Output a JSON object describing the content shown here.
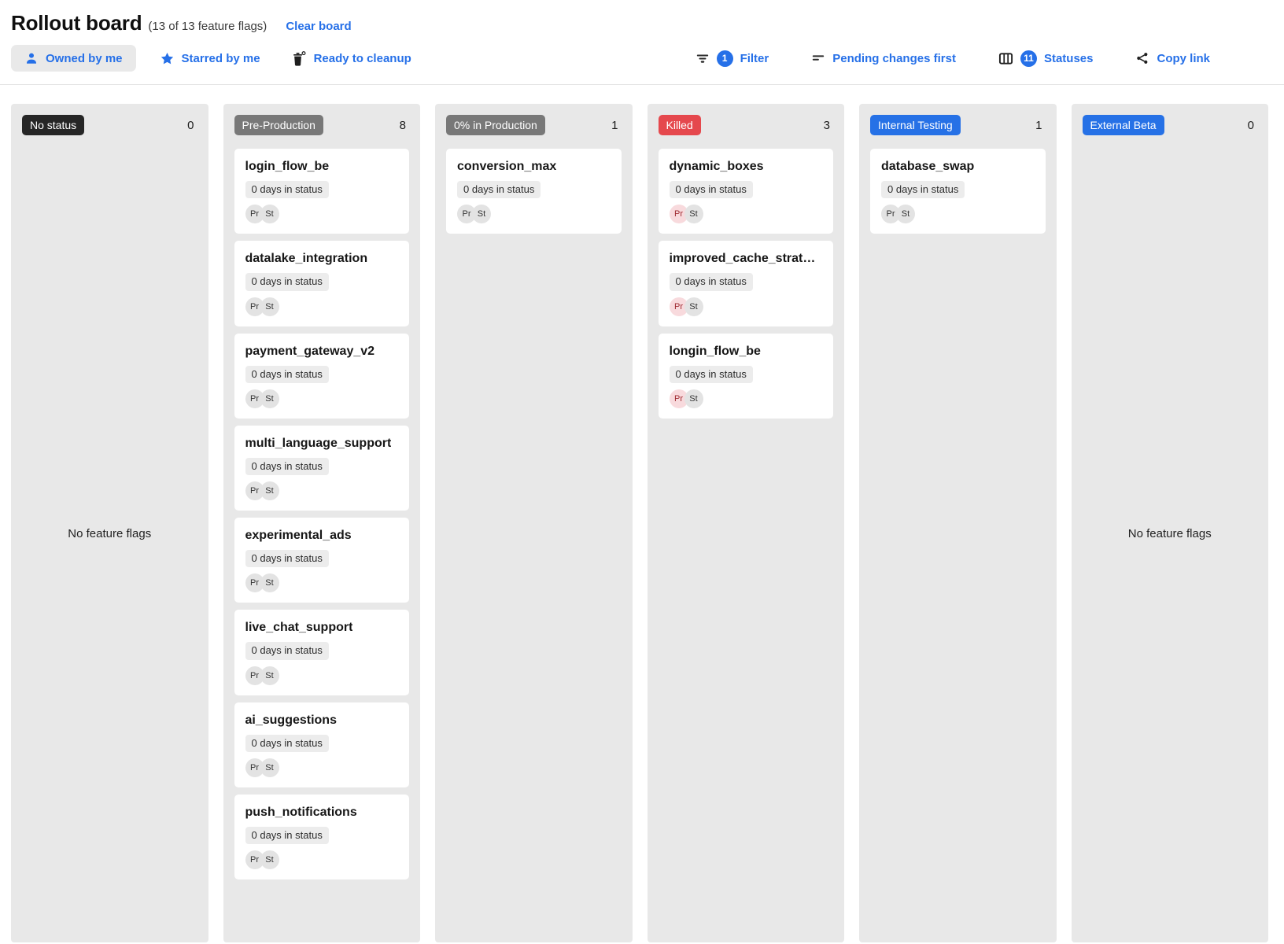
{
  "header": {
    "title": "Rollout board",
    "subtitle": "(13 of 13 feature flags)",
    "clear_board": "Clear board"
  },
  "toolbar": {
    "owned_by_me": "Owned by me",
    "starred_by_me": "Starred by me",
    "ready_to_cleanup": "Ready to cleanup",
    "filter": {
      "badge": "1",
      "label": "Filter"
    },
    "sort": {
      "label": "Pending changes first"
    },
    "statuses": {
      "badge": "11",
      "label": "Statuses"
    },
    "copy_link": "Copy link"
  },
  "colors": {
    "accent_blue": "#2670e8",
    "column_background": "#e8e8e8",
    "badge_no_status": "#262626",
    "badge_gray": "#787878",
    "badge_red": "#e5484d",
    "badge_blue": "#2671e6",
    "env_chip_red_bg": "#f8dadd",
    "env_chip_red_text": "#9e2930"
  },
  "board": {
    "empty_text": "No feature flags",
    "columns": [
      {
        "name": "No status",
        "count": "0",
        "color": "#262626",
        "cards": []
      },
      {
        "name": "Pre-Production",
        "count": "8",
        "color": "#787878",
        "cards": [
          {
            "title": "login_flow_be",
            "days": "0 days in status",
            "chips": [
              {
                "label": "Pr",
                "variant": "gray"
              },
              {
                "label": "St",
                "variant": "gray"
              }
            ]
          },
          {
            "title": "datalake_integration",
            "days": "0 days in status",
            "chips": [
              {
                "label": "Pr",
                "variant": "gray"
              },
              {
                "label": "St",
                "variant": "gray"
              }
            ]
          },
          {
            "title": "payment_gateway_v2",
            "days": "0 days in status",
            "chips": [
              {
                "label": "Pr",
                "variant": "gray"
              },
              {
                "label": "St",
                "variant": "gray"
              }
            ]
          },
          {
            "title": "multi_language_support",
            "days": "0 days in status",
            "chips": [
              {
                "label": "Pr",
                "variant": "gray"
              },
              {
                "label": "St",
                "variant": "gray"
              }
            ]
          },
          {
            "title": "experimental_ads",
            "days": "0 days in status",
            "chips": [
              {
                "label": "Pr",
                "variant": "gray"
              },
              {
                "label": "St",
                "variant": "gray"
              }
            ]
          },
          {
            "title": "live_chat_support",
            "days": "0 days in status",
            "chips": [
              {
                "label": "Pr",
                "variant": "gray"
              },
              {
                "label": "St",
                "variant": "gray"
              }
            ]
          },
          {
            "title": "ai_suggestions",
            "days": "0 days in status",
            "chips": [
              {
                "label": "Pr",
                "variant": "gray"
              },
              {
                "label": "St",
                "variant": "gray"
              }
            ]
          },
          {
            "title": "push_notifications",
            "days": "0 days in status",
            "chips": [
              {
                "label": "Pr",
                "variant": "gray"
              },
              {
                "label": "St",
                "variant": "gray"
              }
            ]
          }
        ]
      },
      {
        "name": "0% in Production",
        "count": "1",
        "color": "#787878",
        "cards": [
          {
            "title": "conversion_max",
            "days": "0 days in status",
            "chips": [
              {
                "label": "Pr",
                "variant": "gray"
              },
              {
                "label": "St",
                "variant": "gray"
              }
            ]
          }
        ]
      },
      {
        "name": "Killed",
        "count": "3",
        "color": "#e5484d",
        "cards": [
          {
            "title": "dynamic_boxes",
            "days": "0 days in status",
            "chips": [
              {
                "label": "Pr",
                "variant": "red"
              },
              {
                "label": "St",
                "variant": "gray"
              }
            ]
          },
          {
            "title": "improved_cache_strategy",
            "days": "0 days in status",
            "chips": [
              {
                "label": "Pr",
                "variant": "red"
              },
              {
                "label": "St",
                "variant": "gray"
              }
            ]
          },
          {
            "title": "longin_flow_be",
            "days": "0 days in status",
            "chips": [
              {
                "label": "Pr",
                "variant": "red"
              },
              {
                "label": "St",
                "variant": "gray"
              }
            ]
          }
        ]
      },
      {
        "name": "Internal Testing",
        "count": "1",
        "color": "#2671e6",
        "cards": [
          {
            "title": "database_swap",
            "days": "0 days in status",
            "chips": [
              {
                "label": "Pr",
                "variant": "gray"
              },
              {
                "label": "St",
                "variant": "gray"
              }
            ]
          }
        ]
      },
      {
        "name": "External Beta",
        "count": "0",
        "color": "#2671e6",
        "cards": []
      }
    ]
  }
}
